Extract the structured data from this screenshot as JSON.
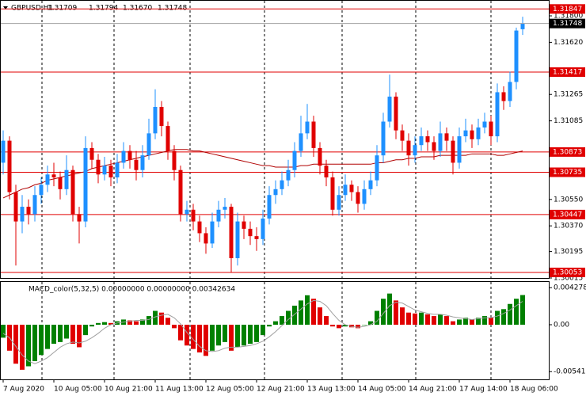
{
  "chart_data": {
    "type": "candlestick",
    "header": [
      "GBPUSD,H1",
      "1.31709",
      "1.31794",
      "1.31670",
      "1.31748"
    ],
    "categories": [
      "7 Aug 2020",
      null,
      null,
      null,
      null,
      null,
      null,
      null,
      "10 Aug 05:00",
      null,
      null,
      null,
      null,
      null,
      null,
      null,
      "10 Aug 21:00",
      null,
      null,
      null,
      null,
      null,
      null,
      null,
      "11 Aug 13:00",
      null,
      null,
      null,
      null,
      null,
      null,
      null,
      "12 Aug 05:00",
      null,
      null,
      null,
      null,
      null,
      null,
      null,
      "12 Aug 21:00",
      null,
      null,
      null,
      null,
      null,
      null,
      null,
      "13 Aug 13:00",
      null,
      null,
      null,
      null,
      null,
      null,
      null,
      "14 Aug 05:00",
      null,
      null,
      null,
      null,
      null,
      null,
      null,
      "14 Aug 21:00",
      null,
      null,
      null,
      null,
      null,
      null,
      null,
      "17 Aug 14:00",
      null,
      null,
      null,
      null,
      null,
      null,
      null,
      "18 Aug 06:00",
      null,
      null
    ],
    "ohlc": [
      [
        1.308,
        1.3102,
        1.3072,
        1.3095
      ],
      [
        1.3095,
        1.3098,
        1.3055,
        1.306
      ],
      [
        1.306,
        1.3065,
        1.301,
        1.304
      ],
      [
        1.304,
        1.3058,
        1.3032,
        1.305
      ],
      [
        1.305,
        1.3055,
        1.3038,
        1.3045
      ],
      [
        1.3045,
        1.3064,
        1.304,
        1.3058
      ],
      [
        1.3058,
        1.307,
        1.3052,
        1.3065
      ],
      [
        1.3065,
        1.3078,
        1.306,
        1.3072
      ],
      [
        1.3072,
        1.308,
        1.3064,
        1.307
      ],
      [
        1.307,
        1.3074,
        1.3055,
        1.3062
      ],
      [
        1.3062,
        1.3085,
        1.3058,
        1.3075
      ],
      [
        1.3075,
        1.3078,
        1.304,
        1.3045
      ],
      [
        1.3045,
        1.305,
        1.3025,
        1.304
      ],
      [
        1.304,
        1.3098,
        1.3036,
        1.309
      ],
      [
        1.309,
        1.3094,
        1.3076,
        1.3082
      ],
      [
        1.3082,
        1.3086,
        1.3066,
        1.3072
      ],
      [
        1.3072,
        1.3084,
        1.3068,
        1.3078
      ],
      [
        1.3078,
        1.3082,
        1.3064,
        1.307
      ],
      [
        1.307,
        1.3086,
        1.3066,
        1.308
      ],
      [
        1.308,
        1.3094,
        1.3076,
        1.3088
      ],
      [
        1.3088,
        1.3092,
        1.3076,
        1.3082
      ],
      [
        1.3082,
        1.3088,
        1.3068,
        1.3075
      ],
      [
        1.3075,
        1.3092,
        1.307,
        1.3085
      ],
      [
        1.3085,
        1.311,
        1.3082,
        1.31
      ],
      [
        1.31,
        1.313,
        1.3096,
        1.3118
      ],
      [
        1.3118,
        1.3122,
        1.3098,
        1.3105
      ],
      [
        1.3105,
        1.3108,
        1.3082,
        1.3088
      ],
      [
        1.3088,
        1.3092,
        1.3068,
        1.3075
      ],
      [
        1.3075,
        1.3078,
        1.304,
        1.3045
      ],
      [
        1.3045,
        1.3054,
        1.304,
        1.3048
      ],
      [
        1.3048,
        1.3052,
        1.3034,
        1.304
      ],
      [
        1.304,
        1.3044,
        1.3026,
        1.3032
      ],
      [
        1.3032,
        1.3036,
        1.3018,
        1.3025
      ],
      [
        1.3025,
        1.3046,
        1.3022,
        1.304
      ],
      [
        1.304,
        1.3054,
        1.3036,
        1.3048
      ],
      [
        1.3048,
        1.3056,
        1.3042,
        1.305
      ],
      [
        1.305,
        1.3052,
        1.3005,
        1.3015
      ],
      [
        1.3015,
        1.3046,
        1.301,
        1.304
      ],
      [
        1.304,
        1.3044,
        1.3028,
        1.3035
      ],
      [
        1.3035,
        1.304,
        1.3024,
        1.303
      ],
      [
        1.303,
        1.3036,
        1.302,
        1.3028
      ],
      [
        1.3028,
        1.3048,
        1.3024,
        1.3042
      ],
      [
        1.3042,
        1.3064,
        1.3038,
        1.3058
      ],
      [
        1.3058,
        1.3068,
        1.3052,
        1.3062
      ],
      [
        1.3062,
        1.3074,
        1.3058,
        1.3068
      ],
      [
        1.3068,
        1.3082,
        1.3064,
        1.3075
      ],
      [
        1.3075,
        1.3094,
        1.307,
        1.3088
      ],
      [
        1.3088,
        1.3112,
        1.3084,
        1.31
      ],
      [
        1.31,
        1.312,
        1.3096,
        1.3108
      ],
      [
        1.3108,
        1.3112,
        1.3084,
        1.309
      ],
      [
        1.309,
        1.3094,
        1.3072,
        1.3078
      ],
      [
        1.3078,
        1.3082,
        1.3064,
        1.307
      ],
      [
        1.307,
        1.3074,
        1.3044,
        1.3048
      ],
      [
        1.3048,
        1.3064,
        1.3044,
        1.3058
      ],
      [
        1.3058,
        1.3072,
        1.3054,
        1.3065
      ],
      [
        1.3065,
        1.3068,
        1.3054,
        1.306
      ],
      [
        1.306,
        1.3064,
        1.3046,
        1.3052
      ],
      [
        1.3052,
        1.3068,
        1.3048,
        1.3062
      ],
      [
        1.3062,
        1.3074,
        1.3058,
        1.3068
      ],
      [
        1.3068,
        1.3092,
        1.3064,
        1.3085
      ],
      [
        1.3085,
        1.3114,
        1.308,
        1.3108
      ],
      [
        1.3108,
        1.314,
        1.3104,
        1.3125
      ],
      [
        1.3125,
        1.3128,
        1.3096,
        1.3102
      ],
      [
        1.3102,
        1.3106,
        1.3088,
        1.3095
      ],
      [
        1.3095,
        1.31,
        1.3078,
        1.3085
      ],
      [
        1.3085,
        1.3098,
        1.308,
        1.3092
      ],
      [
        1.3092,
        1.3104,
        1.3088,
        1.3098
      ],
      [
        1.3098,
        1.3102,
        1.3088,
        1.3094
      ],
      [
        1.3094,
        1.3098,
        1.3082,
        1.3088
      ],
      [
        1.3088,
        1.3108,
        1.3084,
        1.31
      ],
      [
        1.31,
        1.3104,
        1.3088,
        1.3095
      ],
      [
        1.3095,
        1.3098,
        1.3072,
        1.308
      ],
      [
        1.308,
        1.3104,
        1.3076,
        1.3098
      ],
      [
        1.3098,
        1.311,
        1.3094,
        1.3102
      ],
      [
        1.3102,
        1.3106,
        1.309,
        1.3096
      ],
      [
        1.3096,
        1.311,
        1.3092,
        1.3104
      ],
      [
        1.3104,
        1.3114,
        1.31,
        1.3108
      ],
      [
        1.3108,
        1.3112,
        1.3092,
        1.3098
      ],
      [
        1.3098,
        1.3134,
        1.3094,
        1.3128
      ],
      [
        1.3128,
        1.3132,
        1.3116,
        1.3122
      ],
      [
        1.3122,
        1.3142,
        1.3118,
        1.3135
      ],
      [
        1.3135,
        1.3172,
        1.313,
        1.317
      ],
      [
        1.31709,
        1.31794,
        1.3167,
        1.31748
      ]
    ],
    "ma": [
      1.3056,
      1.3058,
      1.306,
      1.3062,
      1.3063,
      1.3065,
      1.3066,
      1.3068,
      1.3069,
      1.307,
      1.3071,
      1.3072,
      1.3073,
      1.3074,
      1.3076,
      1.3077,
      1.3078,
      1.3079,
      1.308,
      1.3081,
      1.3082,
      1.3083,
      1.3084,
      1.3085,
      1.3086,
      1.3087,
      1.3088,
      1.3089,
      1.3089,
      1.3089,
      1.3088,
      1.3088,
      1.3087,
      1.3086,
      1.3085,
      1.3084,
      1.3083,
      1.3082,
      1.3081,
      1.308,
      1.3079,
      1.3078,
      1.3078,
      1.3077,
      1.3077,
      1.3077,
      1.3077,
      1.3078,
      1.3078,
      1.3079,
      1.3079,
      1.3079,
      1.3079,
      1.3079,
      1.3079,
      1.3079,
      1.3079,
      1.3079,
      1.3079,
      1.308,
      1.308,
      1.3081,
      1.3082,
      1.3082,
      1.3083,
      1.3083,
      1.3084,
      1.3084,
      1.3084,
      1.3085,
      1.3085,
      1.3085,
      1.3085,
      1.3085,
      1.3086,
      1.3086,
      1.3086,
      1.3086,
      1.3085,
      1.3085,
      1.3086,
      1.3087,
      1.3088
    ],
    "ylim": [
      1.30015,
      1.31908
    ],
    "yticks": [
      {
        "value": 1.318,
        "label": "1.31800"
      },
      {
        "value": 1.3162,
        "label": "1.31620"
      },
      1.31265,
      1.31085,
      {
        "value": 1.3055,
        "label": "1.30550"
      },
      {
        "value": 1.3037,
        "label": "1.30370"
      },
      1.30195,
      1.30015
    ],
    "levels": [
      1.31847,
      1.31417,
      1.30873,
      1.30735,
      1.30447,
      1.30053
    ],
    "up_color": "#1e90ff",
    "down_color": "#e00000",
    "ma_color": "#b00000",
    "level_color": "#e00000",
    "macd": {
      "title": "MACD_color(5,32,5) 0.00000000 0.00000000 0.00342634",
      "histogram": [
        -0.0015,
        -0.003,
        -0.0045,
        -0.0052,
        -0.0048,
        -0.0042,
        -0.0035,
        -0.0028,
        -0.0022,
        -0.002,
        -0.0016,
        -0.0022,
        -0.0026,
        -0.0012,
        -0.0002,
        0.0002,
        0.0003,
        0.0002,
        0.0004,
        0.0006,
        0.0005,
        0.0004,
        0.0006,
        0.001,
        0.0016,
        0.0014,
        0.0008,
        -0.0004,
        -0.0018,
        -0.0024,
        -0.0028,
        -0.0032,
        -0.0036,
        -0.003,
        -0.0024,
        -0.002,
        -0.003,
        -0.0026,
        -0.0024,
        -0.0022,
        -0.002,
        -0.0012,
        -0.0002,
        0.0004,
        0.001,
        0.0016,
        0.0022,
        0.0028,
        0.0034,
        0.003,
        0.002,
        0.001,
        -0.0002,
        -0.0004,
        -0.0002,
        -0.0003,
        -0.0004,
        0.0,
        0.0004,
        0.0016,
        0.003,
        0.0036,
        0.0028,
        0.002,
        0.0014,
        0.0013,
        0.0014,
        0.0012,
        0.001,
        0.0012,
        0.001,
        0.0004,
        0.0006,
        0.0008,
        0.0006,
        0.0008,
        0.001,
        0.0008,
        0.0016,
        0.0018,
        0.0024,
        0.003,
        0.00342634
      ],
      "signal": [
        -0.001,
        -0.0015,
        -0.0025,
        -0.0035,
        -0.0042,
        -0.0045,
        -0.0042,
        -0.0038,
        -0.0032,
        -0.0026,
        -0.0022,
        -0.002,
        -0.0021,
        -0.0019,
        -0.0015,
        -0.001,
        -0.0004,
        0.0,
        0.0002,
        0.0003,
        0.0004,
        0.0005,
        0.0005,
        0.0006,
        0.0009,
        0.0011,
        0.0012,
        0.0008,
        0.0001,
        -0.0009,
        -0.0017,
        -0.0025,
        -0.003,
        -0.0031,
        -0.003,
        -0.0027,
        -0.0026,
        -0.0026,
        -0.0025,
        -0.0024,
        -0.0022,
        -0.0019,
        -0.0014,
        -0.0008,
        -0.0001,
        0.0006,
        0.0012,
        0.0018,
        0.0024,
        0.0028,
        0.0027,
        0.0022,
        0.0013,
        0.0005,
        0.0,
        -0.0002,
        -0.0003,
        -0.0002,
        0.0,
        0.0004,
        0.0013,
        0.0022,
        0.0026,
        0.0025,
        0.0021,
        0.0017,
        0.0015,
        0.0013,
        0.0012,
        0.0012,
        0.0011,
        0.0009,
        0.0008,
        0.0007,
        0.0006,
        0.0007,
        0.0008,
        0.0008,
        0.001,
        0.0013,
        0.0017,
        0.0022,
        0.0027
      ],
      "ylim": [
        -0.00631,
        0.00503
      ],
      "yticks": [
        0.0042782,
        {
          "value": 0,
          "label": "0.00"
        },
        -0.005416
      ],
      "up_color": "#008000",
      "down_color": "#e00000",
      "signal_color": "#a0a0a0"
    }
  }
}
